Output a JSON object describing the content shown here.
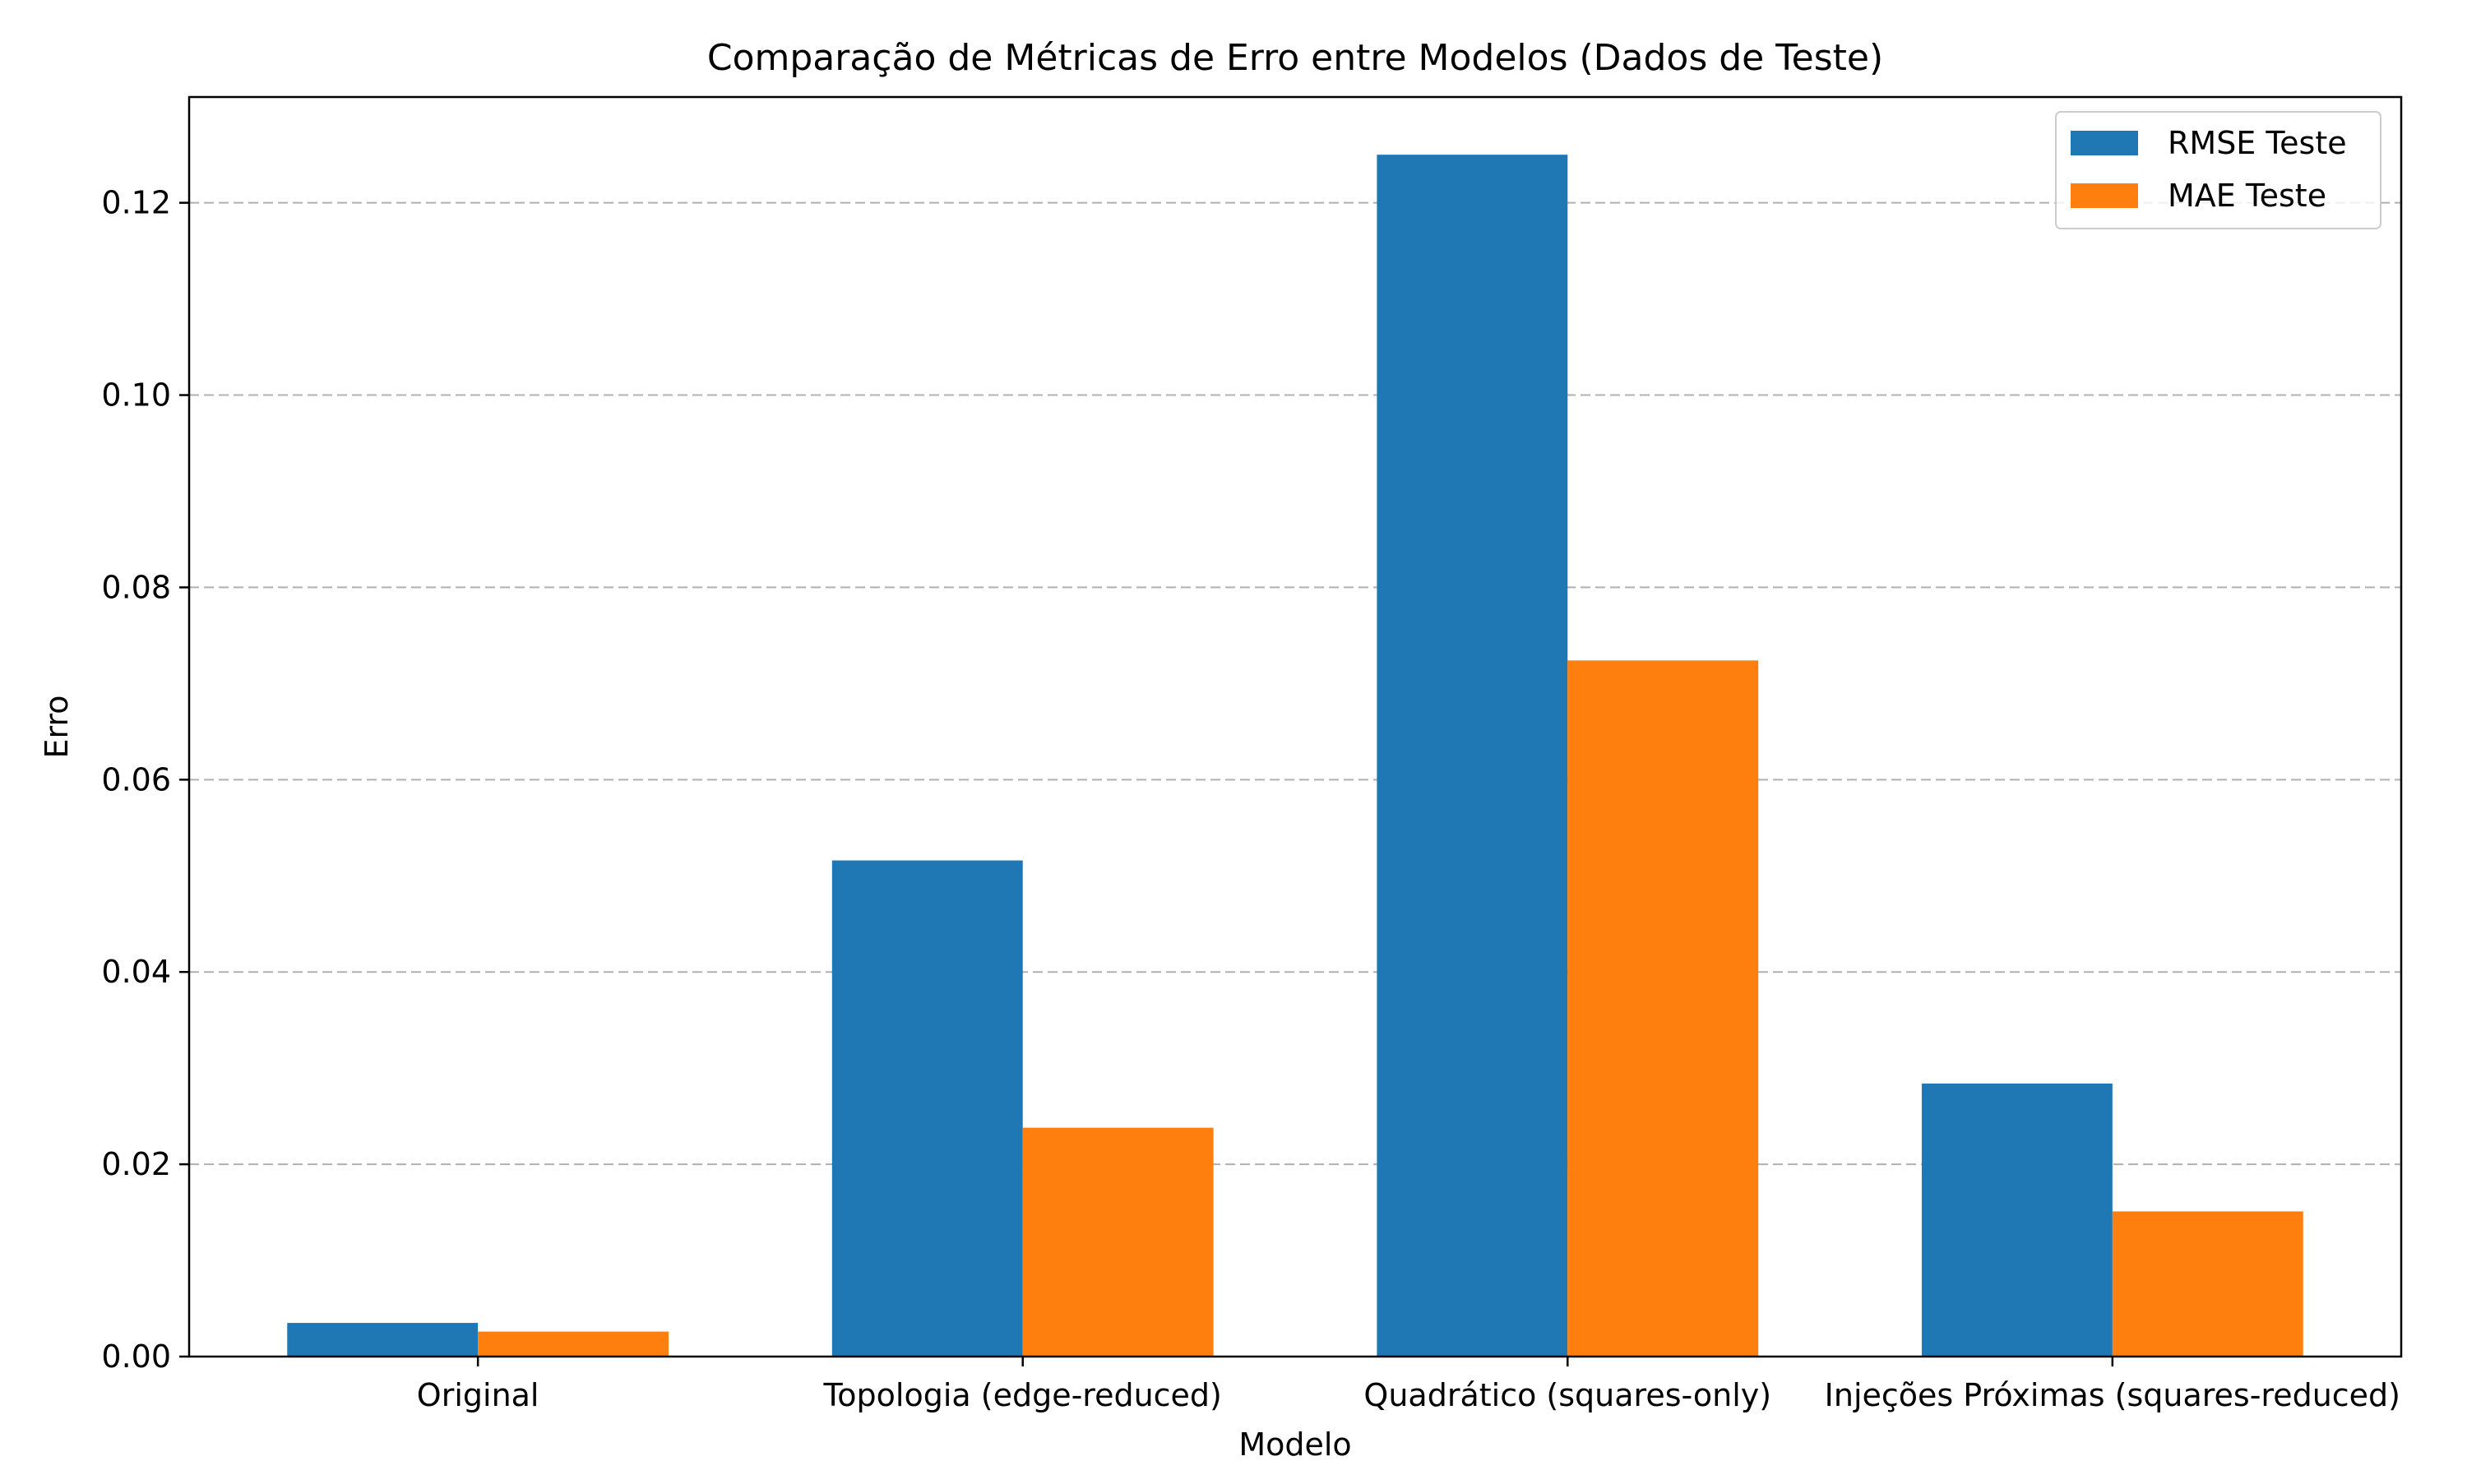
{
  "chart_data": {
    "type": "bar",
    "title": "Comparação de Métricas de Erro entre Modelos (Dados de Teste)",
    "xlabel": "Modelo",
    "ylabel": "Erro",
    "categories": [
      "Original",
      "Topologia (edge-reduced)",
      "Quadrático (squares-only)",
      "Injeções Próximas (squares-reduced)"
    ],
    "series": [
      {
        "name": "RMSE Teste",
        "color": "#1f77b4",
        "values": [
          0.0035,
          0.0516,
          0.125,
          0.0284
        ]
      },
      {
        "name": "MAE Teste",
        "color": "#ff7f0e",
        "values": [
          0.0026,
          0.0238,
          0.0724,
          0.0151
        ]
      }
    ],
    "ylim": [
      0,
      0.131
    ],
    "yticks": [
      "0.00",
      "0.02",
      "0.04",
      "0.06",
      "0.08",
      "0.10",
      "0.12"
    ],
    "grid": "y-dashed",
    "legend": "top-right"
  }
}
